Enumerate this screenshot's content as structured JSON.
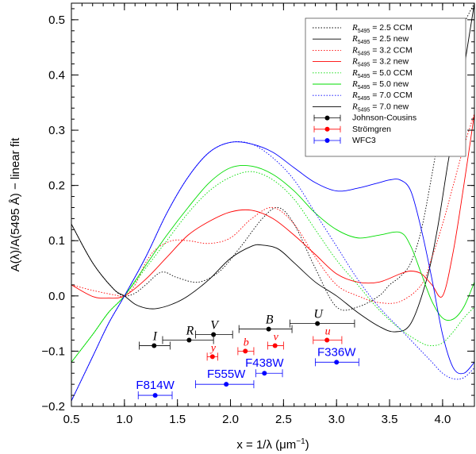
{
  "chart_data": {
    "type": "line",
    "xlabel_prefix": "x = 1/λ (μm",
    "xlabel_sup": "−1",
    "xlabel_suffix": ")",
    "ylabel": "A(λ)/A(5495 Å) − linear fit",
    "xlim": [
      0.5,
      4.3
    ],
    "ylim": [
      -0.2,
      0.53
    ],
    "xticks": [
      0.5,
      1.0,
      1.5,
      2.0,
      2.5,
      3.0,
      3.5,
      4.0
    ],
    "xtick_labels": [
      "0.5",
      "1.0",
      "1.5",
      "2.0",
      "2.5",
      "3.0",
      "3.5",
      "4.0"
    ],
    "yticks": [
      -0.2,
      -0.1,
      0.0,
      0.1,
      0.2,
      0.3,
      0.4,
      0.5
    ],
    "ytick_labels": [
      "−0.2",
      "−0.1",
      "0.0",
      "0.1",
      "0.2",
      "0.3",
      "0.4",
      "0.5"
    ],
    "legend_position": "top-right",
    "series": [
      {
        "name": "R5495 = 2.5 CCM",
        "legend_sub": "5495",
        "legend_rest": " = 2.5 CCM",
        "color": "#000000",
        "dash": "dotted",
        "x": [
          0.5,
          0.7,
          0.9,
          1.0,
          1.1,
          1.2,
          1.35,
          1.5,
          1.7,
          1.9,
          2.1,
          2.3,
          2.45,
          2.6,
          2.8,
          3.0,
          3.2,
          3.4,
          3.5,
          3.6,
          3.7,
          3.8,
          3.9,
          4.0,
          4.1,
          4.2,
          4.3
        ],
        "y": [
          0.13,
          0.06,
          0.012,
          0.0,
          0.005,
          0.02,
          0.043,
          0.033,
          0.025,
          0.045,
          0.09,
          0.14,
          0.16,
          0.13,
          0.05,
          -0.02,
          -0.02,
          0.0,
          0.02,
          0.035,
          0.06,
          0.12,
          0.22,
          0.33,
          0.42,
          0.49,
          0.53
        ]
      },
      {
        "name": "R5495 = 2.5 new",
        "legend_sub": "5495",
        "legend_rest": " = 2.5 new",
        "color": "#000000",
        "dash": "solid",
        "x": [
          0.5,
          0.7,
          0.9,
          1.0,
          1.1,
          1.2,
          1.3,
          1.45,
          1.6,
          1.8,
          2.0,
          2.2,
          2.3,
          2.45,
          2.6,
          2.8,
          3.0,
          3.2,
          3.4,
          3.55,
          3.7,
          3.85,
          3.95,
          4.05,
          4.15,
          4.25,
          4.3
        ],
        "y": [
          0.13,
          0.06,
          0.012,
          0.0,
          -0.015,
          -0.022,
          -0.023,
          -0.015,
          0.0,
          0.03,
          0.068,
          0.09,
          0.092,
          0.085,
          0.06,
          0.025,
          0.0,
          -0.03,
          -0.055,
          -0.065,
          -0.05,
          0.03,
          0.12,
          0.24,
          0.35,
          0.47,
          0.53
        ]
      },
      {
        "name": "R5495 = 3.2 CCM",
        "legend_sub": "5495",
        "legend_rest": " = 3.2 CCM",
        "color": "#ff0000",
        "dash": "dotted",
        "x": [
          0.5,
          0.7,
          0.9,
          1.0,
          1.1,
          1.2,
          1.3,
          1.45,
          1.6,
          1.8,
          2.0,
          2.2,
          2.4,
          2.6,
          2.8,
          3.0,
          3.2,
          3.4,
          3.6,
          3.8,
          3.9,
          4.0,
          4.1,
          4.2,
          4.3
        ],
        "y": [
          0.02,
          0.01,
          0.002,
          0.0,
          0.02,
          0.06,
          0.085,
          0.1,
          0.1,
          0.095,
          0.105,
          0.14,
          0.16,
          0.13,
          0.07,
          0.02,
          0.0,
          -0.012,
          -0.01,
          0.02,
          0.07,
          0.13,
          0.2,
          0.27,
          0.33
        ]
      },
      {
        "name": "R5495 = 3.2 new",
        "legend_sub": "5495",
        "legend_rest": " = 3.2 new",
        "color": "#ff0000",
        "dash": "solid",
        "x": [
          0.5,
          0.7,
          0.85,
          1.0,
          1.2,
          1.4,
          1.6,
          1.8,
          2.0,
          2.2,
          2.4,
          2.6,
          2.8,
          3.0,
          3.2,
          3.4,
          3.6,
          3.7,
          3.8,
          3.9,
          4.0,
          4.1,
          4.2,
          4.3
        ],
        "y": [
          0.02,
          -0.001,
          -0.004,
          0.0,
          0.03,
          0.07,
          0.11,
          0.135,
          0.152,
          0.155,
          0.14,
          0.11,
          0.075,
          0.04,
          0.025,
          0.025,
          0.04,
          0.045,
          0.04,
          0.02,
          0.0,
          0.08,
          0.2,
          0.33
        ]
      },
      {
        "name": "R5495 = 5.0 CCM",
        "legend_sub": "5495",
        "legend_rest": " = 5.0 CCM",
        "color": "#00dd00",
        "dash": "dotted",
        "x": [
          0.5,
          0.7,
          0.85,
          1.0,
          1.2,
          1.4,
          1.6,
          1.8,
          2.0,
          2.2,
          2.4,
          2.6,
          2.8,
          3.0,
          3.2,
          3.4,
          3.6,
          3.8,
          3.9,
          4.0,
          4.1,
          4.2,
          4.3
        ],
        "y": [
          -0.12,
          -0.07,
          -0.03,
          0.0,
          0.05,
          0.1,
          0.15,
          0.19,
          0.215,
          0.225,
          0.21,
          0.175,
          0.12,
          0.065,
          0.02,
          -0.025,
          -0.06,
          -0.085,
          -0.09,
          -0.085,
          -0.065,
          -0.04,
          -0.02
        ]
      },
      {
        "name": "R5495 = 5.0 new",
        "legend_sub": "5495",
        "legend_rest": " = 5.0 new",
        "color": "#00dd00",
        "dash": "solid",
        "x": [
          0.5,
          0.7,
          0.85,
          1.0,
          1.2,
          1.4,
          1.6,
          1.8,
          2.0,
          2.2,
          2.4,
          2.6,
          2.8,
          3.0,
          3.2,
          3.4,
          3.6,
          3.7,
          3.8,
          3.9,
          4.0,
          4.1,
          4.2,
          4.3
        ],
        "y": [
          -0.12,
          -0.07,
          -0.03,
          0.0,
          0.055,
          0.11,
          0.16,
          0.205,
          0.232,
          0.235,
          0.22,
          0.19,
          0.15,
          0.12,
          0.105,
          0.11,
          0.115,
          0.09,
          0.04,
          -0.01,
          -0.04,
          -0.042,
          -0.02,
          0.025
        ]
      },
      {
        "name": "R5495 = 7.0 CCM",
        "legend_sub": "5495",
        "legend_rest": " = 7.0 CCM",
        "color": "#0000ff",
        "dash": "dotted",
        "x": [
          0.5,
          0.7,
          0.85,
          1.0,
          1.2,
          1.4,
          1.6,
          1.8,
          2.0,
          2.2,
          2.4,
          2.6,
          2.8,
          3.0,
          3.2,
          3.4,
          3.6,
          3.8,
          3.9,
          4.0,
          4.1,
          4.2,
          4.3
        ],
        "y": [
          -0.19,
          -0.11,
          -0.05,
          0.0,
          0.07,
          0.15,
          0.215,
          0.26,
          0.278,
          0.275,
          0.25,
          0.21,
          0.15,
          0.09,
          0.03,
          -0.02,
          -0.06,
          -0.1,
          -0.12,
          -0.14,
          -0.15,
          -0.148,
          -0.13
        ]
      },
      {
        "name": "R5495 = 7.0 new",
        "legend_sub": "5495",
        "legend_rest": " = 7.0 new",
        "color": "#000000",
        "dash": "solid",
        "render_color": "#0000ff",
        "x": [
          0.5,
          0.7,
          0.85,
          1.0,
          1.2,
          1.4,
          1.6,
          1.8,
          2.0,
          2.2,
          2.4,
          2.6,
          2.8,
          3.0,
          3.2,
          3.4,
          3.5,
          3.6,
          3.7,
          3.8,
          3.9,
          4.0,
          4.1,
          4.2,
          4.3
        ],
        "y": [
          -0.19,
          -0.11,
          -0.05,
          0.0,
          0.07,
          0.15,
          0.215,
          0.26,
          0.278,
          0.275,
          0.26,
          0.232,
          0.205,
          0.19,
          0.195,
          0.205,
          0.21,
          0.21,
          0.19,
          0.12,
          0.03,
          -0.07,
          -0.13,
          -0.14,
          -0.12
        ]
      }
    ],
    "legend_markers": [
      {
        "name": "Johnson-Cousins",
        "color": "#000000"
      },
      {
        "name": "Strömgren",
        "color": "#ff0000"
      },
      {
        "name": "WFC3",
        "color": "#0000ff"
      }
    ],
    "points": [
      {
        "label": "I",
        "system": "Johnson-Cousins",
        "x": 1.28,
        "y": -0.09,
        "xerr": [
          1.14,
          1.43
        ],
        "color": "#000000"
      },
      {
        "label": "R",
        "system": "Johnson-Cousins",
        "x": 1.61,
        "y": -0.08,
        "xerr": [
          1.36,
          1.84
        ],
        "color": "#000000"
      },
      {
        "label": "V",
        "system": "Johnson-Cousins",
        "x": 1.84,
        "y": -0.07,
        "xerr": [
          1.67,
          2.02
        ],
        "color": "#000000"
      },
      {
        "label": "B",
        "system": "Johnson-Cousins",
        "x": 2.36,
        "y": -0.06,
        "xerr": [
          2.08,
          2.58
        ],
        "color": "#000000"
      },
      {
        "label": "U",
        "system": "Johnson-Cousins",
        "x": 2.82,
        "y": -0.05,
        "xerr": [
          2.56,
          3.17
        ],
        "color": "#000000"
      },
      {
        "label": "y",
        "system": "Strömgren",
        "x": 1.83,
        "y": -0.11,
        "xerr": [
          1.78,
          1.88
        ],
        "color": "#ff0000"
      },
      {
        "label": "b",
        "system": "Strömgren",
        "x": 2.14,
        "y": -0.1,
        "xerr": [
          2.07,
          2.22
        ],
        "color": "#ff0000"
      },
      {
        "label": "v",
        "system": "Strömgren",
        "x": 2.42,
        "y": -0.09,
        "xerr": [
          2.35,
          2.5
        ],
        "color": "#ff0000"
      },
      {
        "label": "u",
        "system": "Strömgren",
        "x": 2.91,
        "y": -0.08,
        "xerr": [
          2.78,
          3.05
        ],
        "color": "#ff0000"
      },
      {
        "label": "F814W",
        "system": "WFC3",
        "x": 1.29,
        "y": -0.18,
        "xerr": [
          1.13,
          1.45
        ],
        "color": "#0000ff"
      },
      {
        "label": "F555W",
        "system": "WFC3",
        "x": 1.96,
        "y": -0.16,
        "xerr": [
          1.67,
          2.22
        ],
        "color": "#0000ff"
      },
      {
        "label": "F438W",
        "system": "WFC3",
        "x": 2.32,
        "y": -0.14,
        "xerr": [
          2.24,
          2.49
        ],
        "color": "#0000ff"
      },
      {
        "label": "F336W",
        "system": "WFC3",
        "x": 3.0,
        "y": -0.12,
        "xerr": [
          2.8,
          3.21
        ],
        "color": "#0000ff"
      }
    ]
  }
}
